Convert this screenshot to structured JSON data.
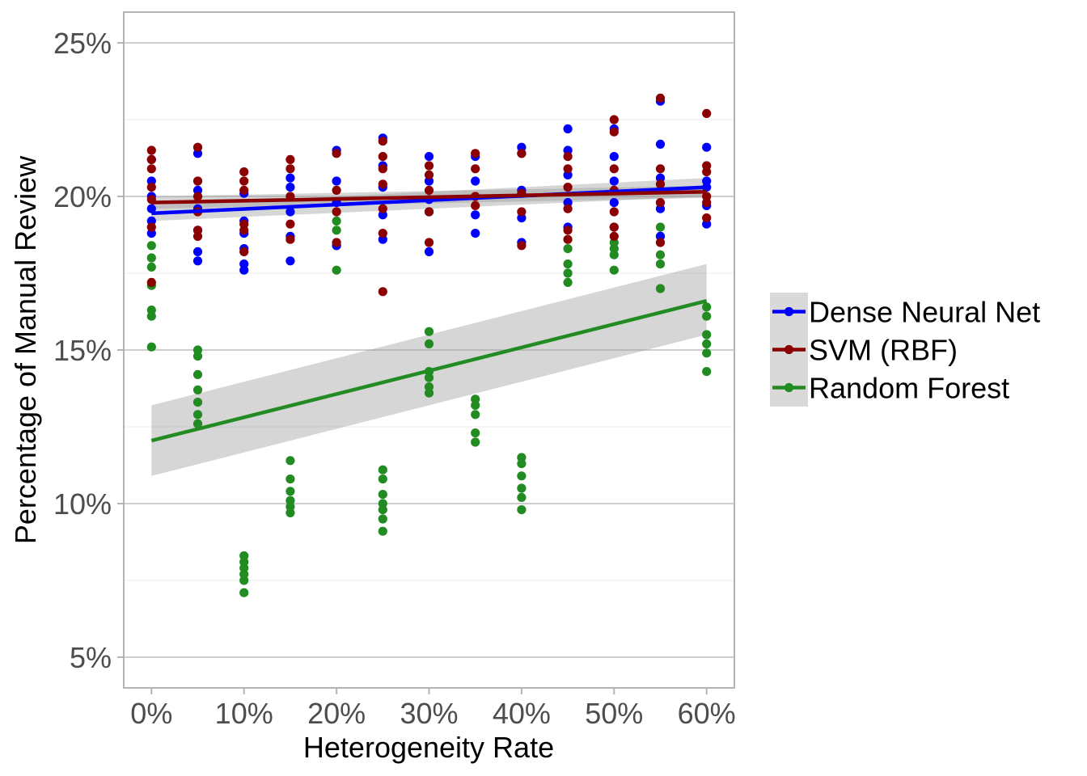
{
  "chart_data": {
    "type": "scatter",
    "title": "",
    "xlabel": "Heterogeneity Rate",
    "ylabel": "Percentage of Manual Review",
    "x_ticks": [
      {
        "value": 0,
        "label": "0%"
      },
      {
        "value": 10,
        "label": "10%"
      },
      {
        "value": 20,
        "label": "20%"
      },
      {
        "value": 30,
        "label": "30%"
      },
      {
        "value": 40,
        "label": "40%"
      },
      {
        "value": 50,
        "label": "50%"
      },
      {
        "value": 60,
        "label": "60%"
      }
    ],
    "y_ticks": [
      {
        "value": 5,
        "label": "5%"
      },
      {
        "value": 10,
        "label": "10%"
      },
      {
        "value": 15,
        "label": "15%"
      },
      {
        "value": 20,
        "label": "20%"
      },
      {
        "value": 25,
        "label": "25%"
      }
    ],
    "xlim": [
      -3,
      63
    ],
    "ylim": [
      4,
      26
    ],
    "grid": true,
    "legend_position": "right",
    "series": [
      {
        "name": "Dense Neural Net",
        "color": "#0000ff",
        "fit": {
          "x": [
            0,
            60
          ],
          "y": [
            19.45,
            20.3
          ],
          "ci_lower": [
            19.2,
            20.0
          ],
          "ci_upper": [
            19.7,
            20.6
          ]
        },
        "points": [
          [
            0,
            20.0
          ],
          [
            0,
            19.2
          ],
          [
            0,
            18.8
          ],
          [
            0,
            20.5
          ],
          [
            0,
            21.2
          ],
          [
            0,
            19.6
          ],
          [
            5,
            18.2
          ],
          [
            5,
            17.9
          ],
          [
            5,
            21.4
          ],
          [
            5,
            19.6
          ],
          [
            5,
            20.2
          ],
          [
            5,
            18.9
          ],
          [
            10,
            17.6
          ],
          [
            10,
            17.8
          ],
          [
            10,
            18.3
          ],
          [
            10,
            18.8
          ],
          [
            10,
            19.2
          ],
          [
            10,
            20.1
          ],
          [
            15,
            17.9
          ],
          [
            15,
            18.7
          ],
          [
            15,
            19.5
          ],
          [
            15,
            20.3
          ],
          [
            15,
            20.6
          ],
          [
            20,
            21.5
          ],
          [
            20,
            18.4
          ],
          [
            20,
            19.8
          ],
          [
            20,
            20.5
          ],
          [
            25,
            21.9
          ],
          [
            25,
            18.6
          ],
          [
            25,
            20.3
          ],
          [
            25,
            19.4
          ],
          [
            25,
            21.0
          ],
          [
            30,
            21.3
          ],
          [
            30,
            18.2
          ],
          [
            30,
            19.9
          ],
          [
            30,
            20.5
          ],
          [
            30,
            19.5
          ],
          [
            35,
            21.3
          ],
          [
            35,
            18.8
          ],
          [
            35,
            19.4
          ],
          [
            35,
            20.5
          ],
          [
            40,
            21.6
          ],
          [
            40,
            18.5
          ],
          [
            40,
            19.3
          ],
          [
            40,
            20.2
          ],
          [
            40,
            21.4
          ],
          [
            45,
            22.2
          ],
          [
            45,
            20.7
          ],
          [
            45,
            19.0
          ],
          [
            45,
            21.5
          ],
          [
            45,
            19.8
          ],
          [
            50,
            22.2
          ],
          [
            50,
            21.3
          ],
          [
            50,
            20.5
          ],
          [
            50,
            19.8
          ],
          [
            50,
            19.0
          ],
          [
            55,
            23.1
          ],
          [
            55,
            21.7
          ],
          [
            55,
            20.6
          ],
          [
            55,
            19.6
          ],
          [
            55,
            18.7
          ],
          [
            60,
            21.6
          ],
          [
            60,
            20.5
          ],
          [
            60,
            19.7
          ],
          [
            60,
            19.1
          ],
          [
            60,
            20.3
          ]
        ]
      },
      {
        "name": "SVM (RBF)",
        "color": "#8b0000",
        "fit": {
          "x": [
            0,
            60
          ],
          "y": [
            19.8,
            20.15
          ],
          "ci_lower": [
            19.6,
            19.95
          ],
          "ci_upper": [
            20.0,
            20.35
          ]
        },
        "points": [
          [
            0,
            21.5
          ],
          [
            0,
            21.2
          ],
          [
            0,
            20.9
          ],
          [
            0,
            20.3
          ],
          [
            0,
            19.9
          ],
          [
            0,
            19.0
          ],
          [
            0,
            17.2
          ],
          [
            5,
            21.6
          ],
          [
            5,
            20.5
          ],
          [
            5,
            20.0
          ],
          [
            5,
            19.5
          ],
          [
            5,
            18.9
          ],
          [
            5,
            18.7
          ],
          [
            10,
            20.8
          ],
          [
            10,
            20.5
          ],
          [
            10,
            20.2
          ],
          [
            10,
            19.1
          ],
          [
            10,
            18.9
          ],
          [
            10,
            18.2
          ],
          [
            15,
            21.2
          ],
          [
            15,
            20.9
          ],
          [
            15,
            20.0
          ],
          [
            15,
            19.1
          ],
          [
            15,
            18.6
          ],
          [
            20,
            21.4
          ],
          [
            20,
            20.2
          ],
          [
            20,
            19.5
          ],
          [
            20,
            18.5
          ],
          [
            25,
            21.8
          ],
          [
            25,
            21.3
          ],
          [
            25,
            20.9
          ],
          [
            25,
            20.4
          ],
          [
            25,
            19.6
          ],
          [
            25,
            18.8
          ],
          [
            25,
            16.9
          ],
          [
            30,
            21.0
          ],
          [
            30,
            20.7
          ],
          [
            30,
            20.2
          ],
          [
            30,
            19.5
          ],
          [
            30,
            18.5
          ],
          [
            35,
            21.4
          ],
          [
            35,
            20.9
          ],
          [
            35,
            20.0
          ],
          [
            35,
            19.7
          ],
          [
            40,
            21.4
          ],
          [
            40,
            20.1
          ],
          [
            40,
            19.5
          ],
          [
            40,
            18.4
          ],
          [
            45,
            21.3
          ],
          [
            45,
            20.9
          ],
          [
            45,
            20.3
          ],
          [
            45,
            19.6
          ],
          [
            45,
            18.9
          ],
          [
            45,
            18.6
          ],
          [
            50,
            22.5
          ],
          [
            50,
            22.1
          ],
          [
            50,
            20.9
          ],
          [
            50,
            20.2
          ],
          [
            50,
            19.5
          ],
          [
            50,
            19.0
          ],
          [
            50,
            18.7
          ],
          [
            55,
            23.2
          ],
          [
            55,
            20.9
          ],
          [
            55,
            20.4
          ],
          [
            55,
            19.8
          ],
          [
            55,
            18.5
          ],
          [
            60,
            22.7
          ],
          [
            60,
            21.0
          ],
          [
            60,
            20.8
          ],
          [
            60,
            20.0
          ],
          [
            60,
            19.8
          ],
          [
            60,
            19.3
          ]
        ]
      },
      {
        "name": "Random Forest",
        "color": "#228b22",
        "fit": {
          "x": [
            0,
            60
          ],
          "y": [
            12.05,
            16.6
          ],
          "ci_lower": [
            10.9,
            15.5
          ],
          "ci_upper": [
            13.2,
            17.8
          ]
        },
        "points": [
          [
            0,
            18.4
          ],
          [
            0,
            18.0
          ],
          [
            0,
            17.7
          ],
          [
            0,
            17.1
          ],
          [
            0,
            16.3
          ],
          [
            0,
            16.1
          ],
          [
            0,
            15.1
          ],
          [
            5,
            15.0
          ],
          [
            5,
            14.8
          ],
          [
            5,
            14.2
          ],
          [
            5,
            13.7
          ],
          [
            5,
            13.3
          ],
          [
            5,
            12.9
          ],
          [
            5,
            12.6
          ],
          [
            10,
            8.3
          ],
          [
            10,
            8.1
          ],
          [
            10,
            7.9
          ],
          [
            10,
            7.7
          ],
          [
            10,
            7.5
          ],
          [
            10,
            7.1
          ],
          [
            15,
            11.4
          ],
          [
            15,
            10.8
          ],
          [
            15,
            10.4
          ],
          [
            15,
            10.1
          ],
          [
            15,
            9.9
          ],
          [
            15,
            9.7
          ],
          [
            20,
            19.2
          ],
          [
            20,
            18.9
          ],
          [
            20,
            18.4
          ],
          [
            20,
            17.6
          ],
          [
            25,
            11.1
          ],
          [
            25,
            10.8
          ],
          [
            25,
            10.3
          ],
          [
            25,
            10.0
          ],
          [
            25,
            9.8
          ],
          [
            25,
            9.5
          ],
          [
            25,
            9.1
          ],
          [
            30,
            15.6
          ],
          [
            30,
            15.2
          ],
          [
            30,
            14.3
          ],
          [
            30,
            14.1
          ],
          [
            30,
            13.8
          ],
          [
            30,
            13.6
          ],
          [
            35,
            13.4
          ],
          [
            35,
            13.2
          ],
          [
            35,
            12.9
          ],
          [
            35,
            12.3
          ],
          [
            35,
            12.0
          ],
          [
            40,
            11.5
          ],
          [
            40,
            11.3
          ],
          [
            40,
            10.9
          ],
          [
            40,
            10.5
          ],
          [
            40,
            10.2
          ],
          [
            40,
            9.8
          ],
          [
            45,
            18.3
          ],
          [
            45,
            17.8
          ],
          [
            45,
            17.5
          ],
          [
            45,
            17.2
          ],
          [
            50,
            18.5
          ],
          [
            50,
            18.3
          ],
          [
            50,
            18.1
          ],
          [
            50,
            17.6
          ],
          [
            55,
            19.0
          ],
          [
            55,
            18.7
          ],
          [
            55,
            18.1
          ],
          [
            55,
            17.8
          ],
          [
            55,
            17.0
          ],
          [
            60,
            16.4
          ],
          [
            60,
            16.1
          ],
          [
            60,
            15.5
          ],
          [
            60,
            15.2
          ],
          [
            60,
            14.9
          ],
          [
            60,
            14.3
          ]
        ]
      }
    ]
  }
}
